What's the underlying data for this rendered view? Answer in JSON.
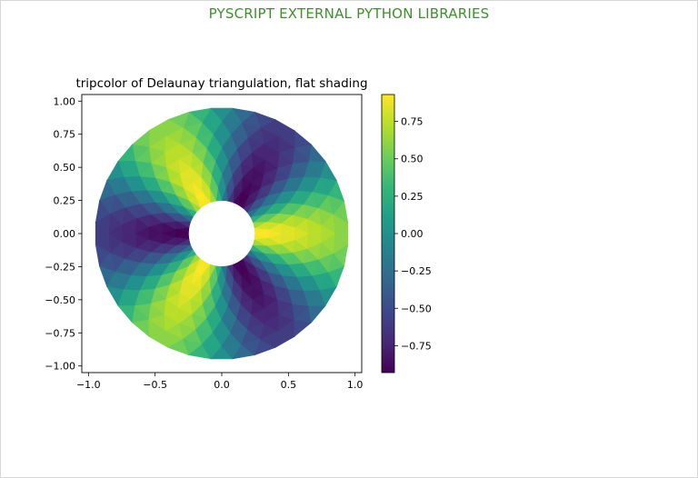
{
  "page": {
    "title": "PYSCRIPT EXTERNAL PYTHON LIBRARIES",
    "title_color": "#3f8f2e"
  },
  "chart_data": {
    "type": "heatmap",
    "subtype": "tripcolor",
    "title": "tripcolor of Delaunay triangulation, flat shading",
    "xlabel": "",
    "ylabel": "",
    "xlim": [
      -1.05,
      1.05
    ],
    "ylim": [
      -1.05,
      1.05
    ],
    "xticks": [
      -1.0,
      -0.5,
      0.0,
      0.5,
      1.0
    ],
    "xtick_labels": [
      "−1.0",
      "−0.5",
      "0.0",
      "0.5",
      "1.0"
    ],
    "yticks": [
      -1.0,
      -0.75,
      -0.5,
      -0.25,
      0.0,
      0.25,
      0.5,
      0.75,
      1.0
    ],
    "ytick_labels": [
      "−1.00",
      "−0.75",
      "−0.50",
      "−0.25",
      "0.00",
      "0.25",
      "0.50",
      "0.75",
      "1.00"
    ],
    "grid": false,
    "annulus": {
      "inner_radius": 0.25,
      "outer_radius": 0.95,
      "n_radii": 8,
      "n_angles": 36
    },
    "function": "z = cos(radius) * cos(3 * angle)",
    "colormap": "viridis",
    "colormap_stops": [
      "#440154",
      "#482878",
      "#3e4989",
      "#31688e",
      "#26828e",
      "#1f9e89",
      "#35b779",
      "#6ece58",
      "#b5de2b",
      "#fde725"
    ],
    "colorbar": {
      "range": [
        -0.93,
        0.93
      ],
      "ticks": [
        -0.75,
        -0.5,
        -0.25,
        0.0,
        0.25,
        0.5,
        0.75
      ],
      "tick_labels": [
        "−0.75",
        "−0.50",
        "−0.25",
        "0.00",
        "0.25",
        "0.50",
        "0.75"
      ]
    }
  }
}
